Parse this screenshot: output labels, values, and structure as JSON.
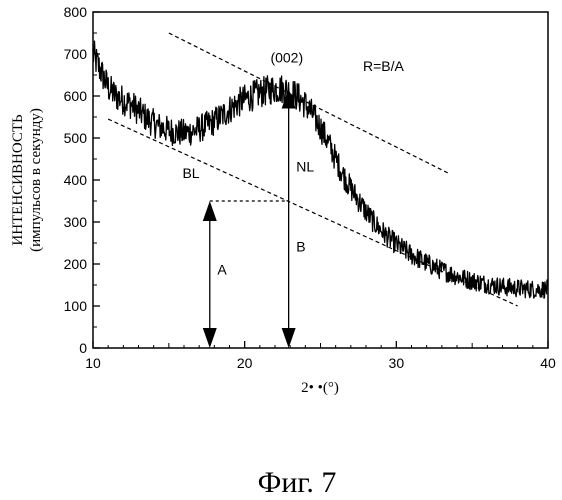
{
  "chart_data": {
    "type": "line",
    "xlabel": "2• •(°)",
    "ylabel_line1": "ИНТЕНСИВНОСТЬ",
    "ylabel_line2": "(импульсов в секунду)",
    "xlim": [
      10,
      40
    ],
    "ylim": [
      0,
      800
    ],
    "xticks": [
      10,
      20,
      30,
      40
    ],
    "xtick_labels": [
      "10",
      "20",
      "30",
      "40"
    ],
    "yticks": [
      0,
      100,
      200,
      300,
      400,
      500,
      600,
      700,
      800
    ],
    "ytick_labels": [
      "0",
      "100",
      "200",
      "300",
      "400",
      "500",
      "600",
      "700",
      "800"
    ],
    "grid": false,
    "series": [
      {
        "x": [
          10,
          10.5,
          11,
          11.5,
          12,
          12.5,
          13,
          13.5,
          14,
          14.5,
          15,
          15.5,
          16,
          16.5,
          17,
          17.5,
          18,
          18.5,
          19,
          19.5,
          20,
          20.5,
          21,
          21.5,
          22,
          22.5,
          23,
          23.5,
          24,
          24.5,
          25,
          25.5,
          26,
          26.5,
          27,
          27.5,
          28,
          28.5,
          29,
          29.5,
          30,
          30.5,
          31,
          31.5,
          32,
          32.5,
          33,
          33.5,
          34,
          34.5,
          35,
          35.5,
          36,
          36.5,
          37,
          37.5,
          38,
          38.5,
          39,
          39.5,
          40
        ],
        "y": [
          700,
          660,
          620,
          600,
          590,
          580,
          565,
          548,
          535,
          525,
          518,
          513,
          512,
          515,
          522,
          530,
          540,
          553,
          568,
          582,
          592,
          600,
          607,
          613,
          618,
          617,
          610,
          598,
          580,
          555,
          525,
          490,
          450,
          412,
          380,
          352,
          325,
          300,
          280,
          262,
          247,
          234,
          222,
          212,
          202,
          193,
          185,
          178,
          171,
          165,
          160,
          156,
          152,
          149,
          146,
          144,
          142,
          141,
          140,
          140,
          140
        ]
      }
    ],
    "annotations": {
      "peak_label": "(002)",
      "ratio_label": "R=B/A",
      "baseline_label": "BL",
      "net_label": "NL",
      "a_label": "A",
      "b_label": "B"
    },
    "baseline": {
      "x": [
        11,
        38
      ],
      "y": [
        545,
        100
      ]
    },
    "upper_line": {
      "x": [
        15,
        33.5
      ],
      "y": [
        750,
        415
      ]
    },
    "arrow_a": {
      "x": 17.7,
      "y_from": 0,
      "y_to": 350
    },
    "arrow_b": {
      "x": 22.9,
      "y_from": 0,
      "y_to": 618
    },
    "dotted_horizontal": {
      "x": [
        17.7,
        22.9
      ],
      "y": 350
    }
  },
  "caption": "Фиг. 7"
}
